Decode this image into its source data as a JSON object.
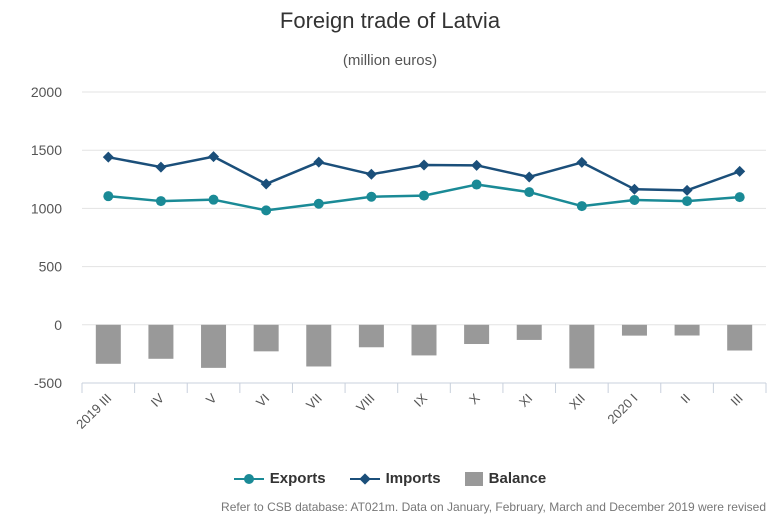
{
  "chart_data": {
    "type": "line",
    "title": "Foreign trade of Latvia",
    "subtitle": "(million euros)",
    "categories": [
      "2019 III",
      "IV",
      "V",
      "VI",
      "VII",
      "VIII",
      "IX",
      "X",
      "XI",
      "XII",
      "2020 I",
      "II",
      "III"
    ],
    "ylim": [
      -500,
      2000
    ],
    "yticks": [
      -500,
      0,
      500,
      1000,
      1500,
      2000
    ],
    "grid": true,
    "legend_position": "bottom",
    "series": [
      {
        "name": "Exports",
        "kind": "line",
        "marker": "circle",
        "color": "#1a8a96",
        "values": [
          1105,
          1063,
          1075,
          983,
          1040,
          1100,
          1110,
          1205,
          1140,
          1020,
          1072,
          1063,
          1097
        ]
      },
      {
        "name": "Imports",
        "kind": "line",
        "marker": "diamond",
        "color": "#1b4f7a",
        "values": [
          1440,
          1355,
          1445,
          1210,
          1398,
          1293,
          1373,
          1370,
          1270,
          1395,
          1165,
          1155,
          1318
        ]
      },
      {
        "name": "Balance",
        "kind": "bar",
        "color": "#999999",
        "values": [
          -335,
          -292,
          -370,
          -228,
          -358,
          -193,
          -263,
          -165,
          -130,
          -375,
          -93,
          -92,
          -221
        ]
      }
    ],
    "footnote": "Refer to CSB database: AT021m. Data on January, February, March and December 2019 were revised"
  }
}
